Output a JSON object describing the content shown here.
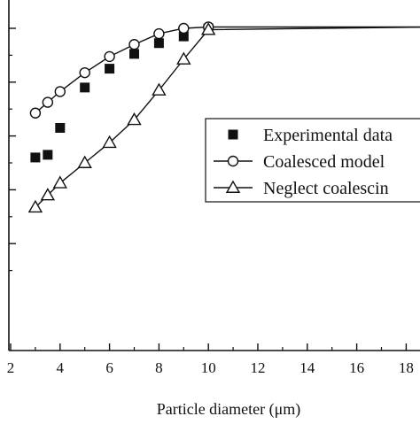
{
  "chart_data": {
    "type": "line",
    "title": "",
    "xlabel": "Particle diameter (μm)",
    "ylabel": "",
    "xlim": [
      2,
      19
    ],
    "ylim": [
      0,
      100
    ],
    "x_ticks": [
      2,
      4,
      6,
      8,
      10,
      12,
      14,
      16,
      18
    ],
    "y_ticks": [
      20,
      40,
      60,
      80,
      100
    ],
    "grid": false,
    "legend_position": "center-right",
    "series": [
      {
        "name": "Experimental data",
        "style": "filled-square",
        "color": "#111111",
        "line": false,
        "points": [
          [
            3,
            52
          ],
          [
            3.5,
            53
          ],
          [
            4,
            63
          ],
          [
            5,
            78
          ],
          [
            6,
            85
          ],
          [
            7,
            90.5
          ],
          [
            8,
            94.5
          ],
          [
            9,
            97
          ],
          [
            10,
            100
          ]
        ]
      },
      {
        "name": "Coalesced model",
        "style": "open-circle",
        "color": "#111111",
        "line": true,
        "points": [
          [
            3,
            68.5
          ],
          [
            3.5,
            72.5
          ],
          [
            4,
            76.5
          ],
          [
            5,
            83.5
          ],
          [
            6,
            89.5
          ],
          [
            7,
            94
          ],
          [
            8,
            98
          ],
          [
            9,
            100
          ],
          [
            10,
            100.5
          ],
          [
            19,
            100.5
          ]
        ]
      },
      {
        "name": "Neglect coalescin",
        "style": "open-triangle",
        "color": "#111111",
        "line": true,
        "points": [
          [
            3,
            33.5
          ],
          [
            3.5,
            38
          ],
          [
            4,
            42.5
          ],
          [
            5,
            50
          ],
          [
            6,
            57.5
          ],
          [
            7,
            66
          ],
          [
            8,
            77
          ],
          [
            9,
            88.5
          ],
          [
            10,
            99.5
          ],
          [
            19,
            100.5
          ]
        ]
      }
    ]
  }
}
